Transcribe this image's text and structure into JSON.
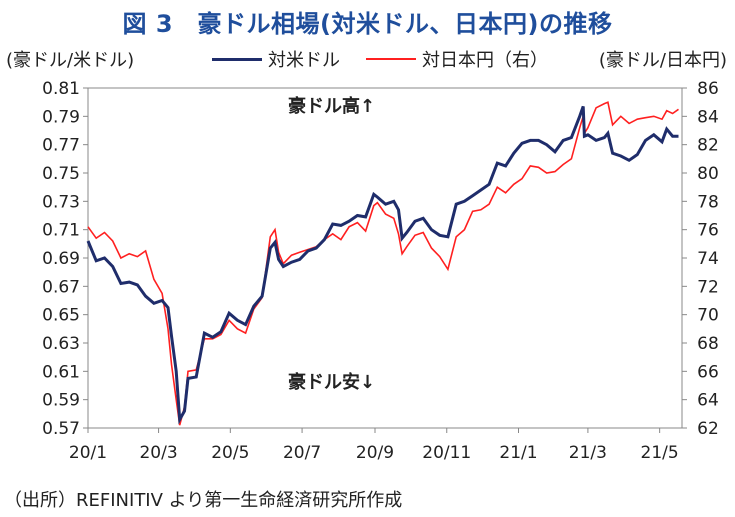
{
  "title": "図 3　豪ドル相場(対米ドル、日本円)の推移",
  "left_unit": "(豪ドル/米ドル)",
  "right_unit": "(豪ドル/日本円)",
  "source": "（出所）REFINITIV より第一生命経済研究所作成",
  "annotations": {
    "up": "豪ドル高↑",
    "down": "豪ドル安↓"
  },
  "colors": {
    "usd": "#1f2d6b",
    "jpy": "#ff2020"
  },
  "chart_data": {
    "type": "line",
    "x_ticks": [
      "20/1",
      "20/3",
      "20/5",
      "20/7",
      "20/9",
      "20/11",
      "21/1",
      "21/3",
      "21/5"
    ],
    "y_left": {
      "ticks": [
        "0.81",
        "0.79",
        "0.77",
        "0.75",
        "0.73",
        "0.71",
        "0.69",
        "0.67",
        "0.65",
        "0.63",
        "0.61",
        "0.59",
        "0.57"
      ],
      "range": [
        0.57,
        0.81
      ]
    },
    "y_right": {
      "ticks": [
        "86",
        "84",
        "82",
        "80",
        "78",
        "76",
        "74",
        "72",
        "70",
        "68",
        "66",
        "64",
        "62"
      ],
      "range": [
        62,
        86
      ]
    },
    "grid": false,
    "legend_position": "top",
    "series": [
      {
        "name": "対米ドル",
        "axis": "left",
        "points": [
          [
            "2020-01-01",
            0.702
          ],
          [
            "2020-01-08",
            0.688
          ],
          [
            "2020-01-15",
            0.69
          ],
          [
            "2020-01-22",
            0.684
          ],
          [
            "2020-01-29",
            0.672
          ],
          [
            "2020-02-05",
            0.673
          ],
          [
            "2020-02-12",
            0.671
          ],
          [
            "2020-02-19",
            0.663
          ],
          [
            "2020-02-26",
            0.658
          ],
          [
            "2020-03-04",
            0.66
          ],
          [
            "2020-03-09",
            0.655
          ],
          [
            "2020-03-12",
            0.635
          ],
          [
            "2020-03-16",
            0.61
          ],
          [
            "2020-03-19",
            0.576
          ],
          [
            "2020-03-23",
            0.582
          ],
          [
            "2020-03-26",
            0.605
          ],
          [
            "2020-04-02",
            0.606
          ],
          [
            "2020-04-09",
            0.637
          ],
          [
            "2020-04-16",
            0.634
          ],
          [
            "2020-04-23",
            0.638
          ],
          [
            "2020-04-30",
            0.651
          ],
          [
            "2020-05-07",
            0.646
          ],
          [
            "2020-05-14",
            0.643
          ],
          [
            "2020-05-21",
            0.656
          ],
          [
            "2020-05-28",
            0.663
          ],
          [
            "2020-06-04",
            0.697
          ],
          [
            "2020-06-08",
            0.701
          ],
          [
            "2020-06-11",
            0.689
          ],
          [
            "2020-06-15",
            0.684
          ],
          [
            "2020-06-22",
            0.687
          ],
          [
            "2020-06-29",
            0.689
          ],
          [
            "2020-07-06",
            0.695
          ],
          [
            "2020-07-13",
            0.697
          ],
          [
            "2020-07-20",
            0.703
          ],
          [
            "2020-07-27",
            0.714
          ],
          [
            "2020-08-03",
            0.713
          ],
          [
            "2020-08-10",
            0.716
          ],
          [
            "2020-08-17",
            0.72
          ],
          [
            "2020-08-24",
            0.719
          ],
          [
            "2020-08-31",
            0.735
          ],
          [
            "2020-09-03",
            0.733
          ],
          [
            "2020-09-10",
            0.728
          ],
          [
            "2020-09-17",
            0.73
          ],
          [
            "2020-09-21",
            0.724
          ],
          [
            "2020-09-24",
            0.704
          ],
          [
            "2020-09-28",
            0.708
          ],
          [
            "2020-10-05",
            0.716
          ],
          [
            "2020-10-12",
            0.718
          ],
          [
            "2020-10-19",
            0.71
          ],
          [
            "2020-10-26",
            0.706
          ],
          [
            "2020-11-02",
            0.705
          ],
          [
            "2020-11-09",
            0.728
          ],
          [
            "2020-11-16",
            0.73
          ],
          [
            "2020-11-23",
            0.734
          ],
          [
            "2020-11-30",
            0.738
          ],
          [
            "2020-12-07",
            0.742
          ],
          [
            "2020-12-14",
            0.757
          ],
          [
            "2020-12-21",
            0.755
          ],
          [
            "2020-12-28",
            0.764
          ],
          [
            "2021-01-04",
            0.771
          ],
          [
            "2021-01-11",
            0.773
          ],
          [
            "2021-01-18",
            0.773
          ],
          [
            "2021-01-25",
            0.77
          ],
          [
            "2021-02-01",
            0.765
          ],
          [
            "2021-02-08",
            0.773
          ],
          [
            "2021-02-15",
            0.775
          ],
          [
            "2021-02-22",
            0.79
          ],
          [
            "2021-02-25",
            0.797
          ],
          [
            "2021-02-26",
            0.776
          ],
          [
            "2021-03-01",
            0.777
          ],
          [
            "2021-03-08",
            0.773
          ],
          [
            "2021-03-15",
            0.775
          ],
          [
            "2021-03-18",
            0.778
          ],
          [
            "2021-03-22",
            0.764
          ],
          [
            "2021-03-29",
            0.762
          ],
          [
            "2021-04-05",
            0.759
          ],
          [
            "2021-04-12",
            0.763
          ],
          [
            "2021-04-19",
            0.773
          ],
          [
            "2021-04-26",
            0.777
          ],
          [
            "2021-05-03",
            0.772
          ],
          [
            "2021-05-07",
            0.781
          ],
          [
            "2021-05-12",
            0.776
          ],
          [
            "2021-05-17",
            0.776
          ]
        ]
      },
      {
        "name": "対日本円（右）",
        "axis": "right",
        "points": [
          [
            "2020-01-01",
            76.2
          ],
          [
            "2020-01-08",
            75.4
          ],
          [
            "2020-01-15",
            75.8
          ],
          [
            "2020-01-22",
            75.2
          ],
          [
            "2020-01-29",
            74.0
          ],
          [
            "2020-02-05",
            74.3
          ],
          [
            "2020-02-12",
            74.1
          ],
          [
            "2020-02-19",
            74.5
          ],
          [
            "2020-02-26",
            72.5
          ],
          [
            "2020-03-04",
            71.5
          ],
          [
            "2020-03-09",
            69.0
          ],
          [
            "2020-03-12",
            66.5
          ],
          [
            "2020-03-16",
            64.0
          ],
          [
            "2020-03-19",
            62.2
          ],
          [
            "2020-03-23",
            63.5
          ],
          [
            "2020-03-26",
            66.0
          ],
          [
            "2020-04-02",
            66.1
          ],
          [
            "2020-04-09",
            68.3
          ],
          [
            "2020-04-16",
            68.3
          ],
          [
            "2020-04-23",
            68.6
          ],
          [
            "2020-04-30",
            69.6
          ],
          [
            "2020-05-07",
            69.0
          ],
          [
            "2020-05-14",
            68.7
          ],
          [
            "2020-05-21",
            70.4
          ],
          [
            "2020-05-28",
            71.2
          ],
          [
            "2020-06-04",
            75.5
          ],
          [
            "2020-06-08",
            76.0
          ],
          [
            "2020-06-11",
            74.4
          ],
          [
            "2020-06-15",
            73.6
          ],
          [
            "2020-06-22",
            74.2
          ],
          [
            "2020-06-29",
            74.4
          ],
          [
            "2020-07-06",
            74.6
          ],
          [
            "2020-07-13",
            74.8
          ],
          [
            "2020-07-20",
            75.3
          ],
          [
            "2020-07-27",
            75.7
          ],
          [
            "2020-08-03",
            75.3
          ],
          [
            "2020-08-10",
            76.2
          ],
          [
            "2020-08-17",
            76.5
          ],
          [
            "2020-08-24",
            75.9
          ],
          [
            "2020-08-31",
            77.7
          ],
          [
            "2020-09-03",
            77.9
          ],
          [
            "2020-09-10",
            77.1
          ],
          [
            "2020-09-17",
            76.8
          ],
          [
            "2020-09-21",
            75.7
          ],
          [
            "2020-09-24",
            74.3
          ],
          [
            "2020-09-28",
            74.8
          ],
          [
            "2020-10-05",
            75.6
          ],
          [
            "2020-10-12",
            75.8
          ],
          [
            "2020-10-19",
            74.7
          ],
          [
            "2020-10-26",
            74.1
          ],
          [
            "2020-11-02",
            73.2
          ],
          [
            "2020-11-09",
            75.5
          ],
          [
            "2020-11-16",
            76.0
          ],
          [
            "2020-11-23",
            77.3
          ],
          [
            "2020-11-30",
            77.4
          ],
          [
            "2020-12-07",
            77.8
          ],
          [
            "2020-12-14",
            79.0
          ],
          [
            "2020-12-21",
            78.6
          ],
          [
            "2020-12-28",
            79.2
          ],
          [
            "2021-01-04",
            79.6
          ],
          [
            "2021-01-11",
            80.5
          ],
          [
            "2021-01-18",
            80.4
          ],
          [
            "2021-01-25",
            80.0
          ],
          [
            "2021-02-01",
            80.1
          ],
          [
            "2021-02-08",
            80.6
          ],
          [
            "2021-02-15",
            81.0
          ],
          [
            "2021-02-22",
            83.2
          ],
          [
            "2021-02-25",
            84.0
          ],
          [
            "2021-02-26",
            82.8
          ],
          [
            "2021-03-01",
            83.2
          ],
          [
            "2021-03-08",
            84.6
          ],
          [
            "2021-03-15",
            84.9
          ],
          [
            "2021-03-18",
            85.0
          ],
          [
            "2021-03-22",
            83.4
          ],
          [
            "2021-03-29",
            84.0
          ],
          [
            "2021-04-05",
            83.5
          ],
          [
            "2021-04-12",
            83.8
          ],
          [
            "2021-04-19",
            83.9
          ],
          [
            "2021-04-26",
            84.0
          ],
          [
            "2021-05-03",
            83.8
          ],
          [
            "2021-05-07",
            84.4
          ],
          [
            "2021-05-12",
            84.2
          ],
          [
            "2021-05-17",
            84.5
          ]
        ]
      }
    ]
  }
}
